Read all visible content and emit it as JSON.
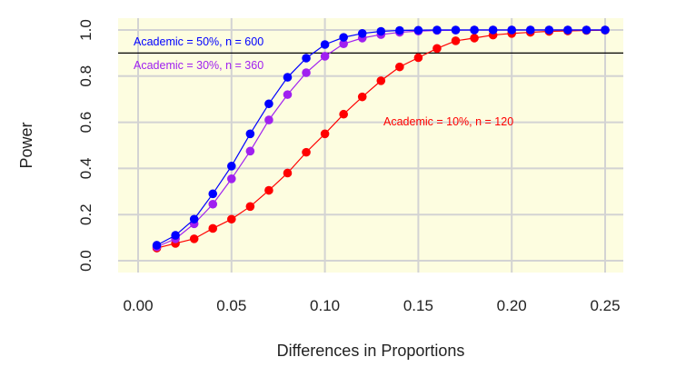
{
  "chart_data": {
    "type": "line",
    "title": "",
    "xlabel": "Differences in Proportions",
    "ylabel": "Power",
    "xlim": [
      0.0,
      0.25
    ],
    "ylim": [
      0.0,
      1.0
    ],
    "grid": true,
    "background": "#fdfde0",
    "x_ticks": [
      "0.00",
      "0.05",
      "0.10",
      "0.15",
      "0.20",
      "0.25"
    ],
    "y_ticks": [
      "0.0",
      "0.2",
      "0.4",
      "0.6",
      "0.8",
      "1.0"
    ],
    "reference_line": {
      "y": 0.9,
      "color": "#000000"
    },
    "x": [
      0.01,
      0.02,
      0.03,
      0.04,
      0.05,
      0.06,
      0.07,
      0.08,
      0.09,
      0.1,
      0.11,
      0.12,
      0.13,
      0.14,
      0.15,
      0.16,
      0.17,
      0.18,
      0.19,
      0.2,
      0.21,
      0.22,
      0.23,
      0.24,
      0.25
    ],
    "series": [
      {
        "name": "Academic = 10%, n = 120",
        "color": "#ff0000",
        "values": [
          0.055,
          0.075,
          0.095,
          0.14,
          0.18,
          0.235,
          0.305,
          0.38,
          0.47,
          0.55,
          0.635,
          0.71,
          0.78,
          0.84,
          0.88,
          0.92,
          0.953,
          0.965,
          0.978,
          0.985,
          0.99,
          0.994,
          0.996,
          0.998,
          0.999
        ]
      },
      {
        "name": "Academic = 30%, n = 360",
        "color": "#a020f0",
        "values": [
          0.06,
          0.095,
          0.16,
          0.245,
          0.355,
          0.475,
          0.61,
          0.72,
          0.815,
          0.886,
          0.94,
          0.965,
          0.98,
          0.99,
          0.995,
          0.998,
          0.999,
          1.0,
          1.0,
          1.0,
          1.0,
          1.0,
          1.0,
          1.0,
          1.0
        ]
      },
      {
        "name": "Academic = 50%, n = 600",
        "color": "#0000ff",
        "values": [
          0.067,
          0.11,
          0.18,
          0.29,
          0.41,
          0.55,
          0.68,
          0.795,
          0.878,
          0.937,
          0.968,
          0.985,
          0.994,
          0.998,
          0.999,
          1.0,
          1.0,
          1.0,
          1.0,
          1.0,
          1.0,
          1.0,
          1.0,
          1.0,
          1.0
        ]
      }
    ],
    "annotations": [
      {
        "text": "Academic = 50%, n = 600",
        "color": "#0000ff"
      },
      {
        "text": "Academic = 30%, n = 360",
        "color": "#a020f0"
      },
      {
        "text": "Academic = 10%, n = 120",
        "color": "#ff0000"
      }
    ]
  }
}
